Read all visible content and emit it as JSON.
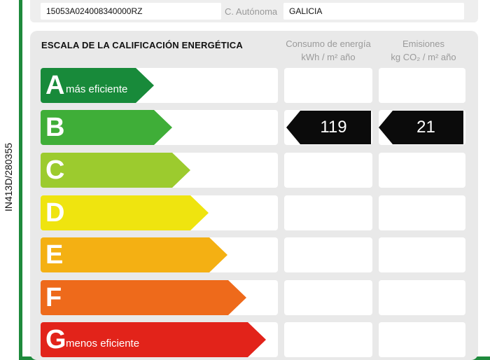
{
  "side_code": "IN413D/280355",
  "header": {
    "cadastral_ref": "15053A024008340000RZ",
    "community_label": "C. Autónoma",
    "community_value": "GALICIA"
  },
  "scale": {
    "title": "ESCALA DE LA CALIFICACIÓN ENERGÉTICA",
    "consumption_header": [
      "Consumo de energía",
      "kWh / m² año"
    ],
    "emissions_header": [
      "Emisiones",
      "kg CO₂ / m² año"
    ],
    "classes": [
      {
        "letter": "A",
        "label": "más eficiente",
        "color": "#188a3a"
      },
      {
        "letter": "B",
        "label": "",
        "color": "#3fae38"
      },
      {
        "letter": "C",
        "label": "",
        "color": "#9ccb2e"
      },
      {
        "letter": "D",
        "label": "",
        "color": "#efe40f"
      },
      {
        "letter": "E",
        "label": "",
        "color": "#f4b013"
      },
      {
        "letter": "F",
        "label": "",
        "color": "#ee6a1b"
      },
      {
        "letter": "G",
        "label": "menos eficiente",
        "color": "#e2231a"
      }
    ],
    "rating": {
      "class": "B",
      "consumption": "119",
      "emissions": "21"
    }
  }
}
